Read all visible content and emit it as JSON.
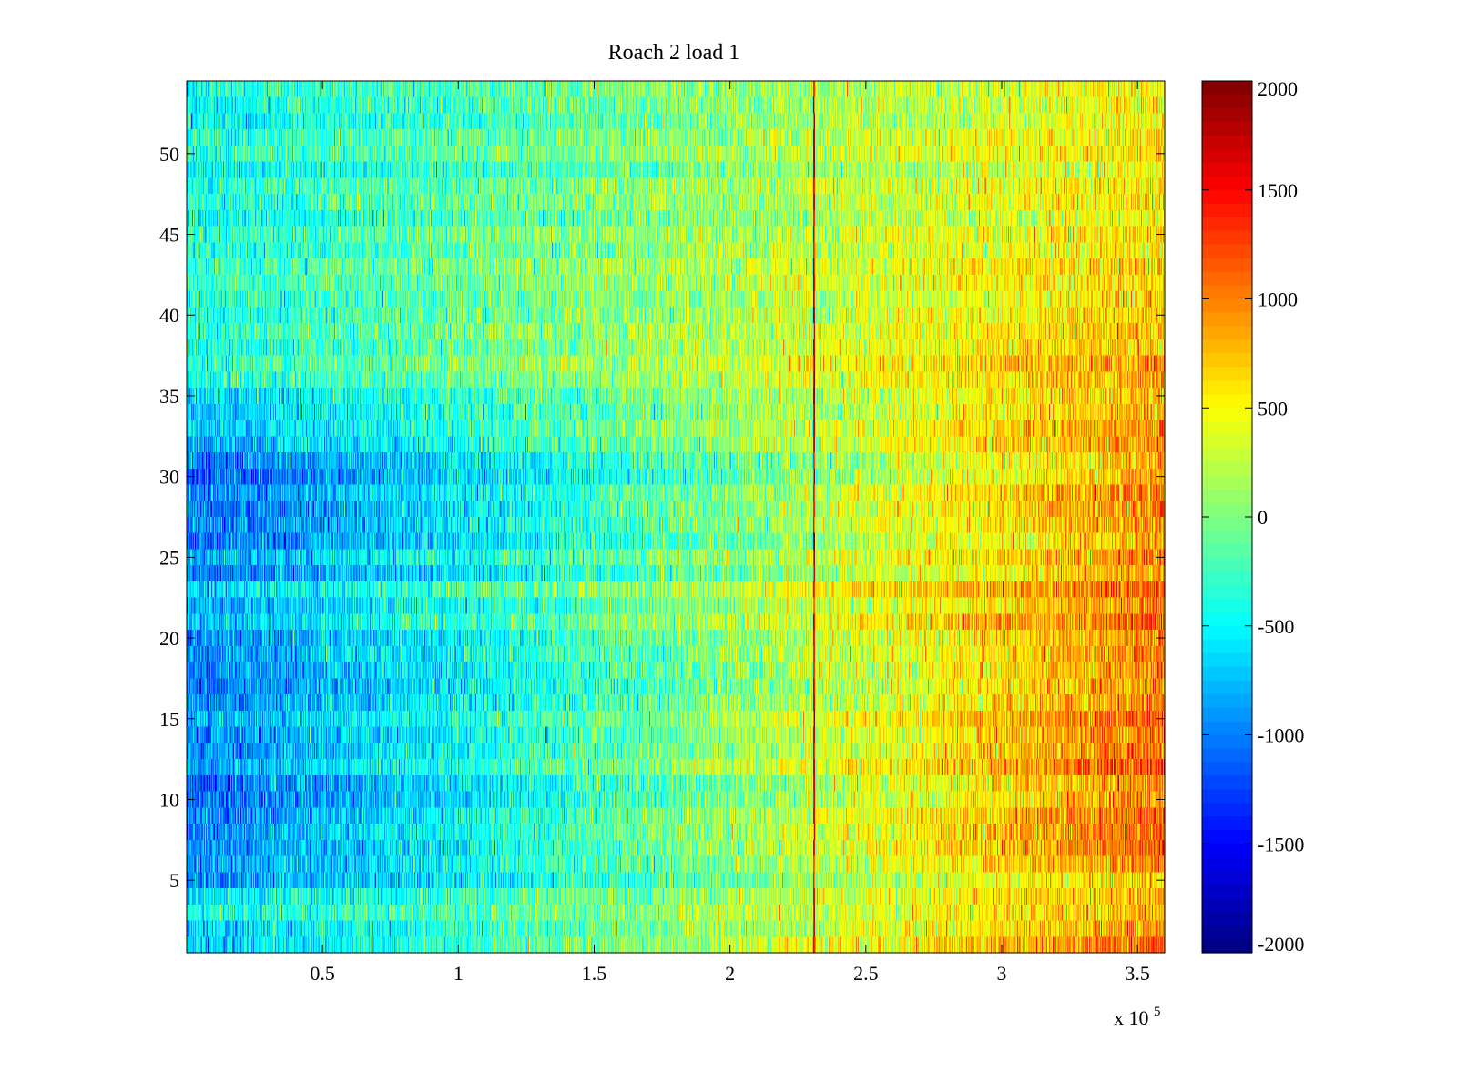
{
  "chart_data": {
    "type": "heatmap",
    "title": "Roach 2 load 1",
    "xlabel": "",
    "ylabel": "",
    "x_multiplier_label": "x 10",
    "x_multiplier_exponent": "5",
    "xlim": [
      0,
      3.6
    ],
    "ylim": [
      0.5,
      54.5
    ],
    "x_ticks": [
      0.5,
      1,
      1.5,
      2,
      2.5,
      3,
      3.5
    ],
    "x_tick_labels": [
      "0.5",
      "1",
      "1.5",
      "2",
      "2.5",
      "3",
      "3.5"
    ],
    "y_ticks": [
      5,
      10,
      15,
      20,
      25,
      30,
      35,
      40,
      45,
      50
    ],
    "y_tick_labels": [
      "5",
      "10",
      "15",
      "20",
      "25",
      "30",
      "35",
      "40",
      "45",
      "50"
    ],
    "rows": 54,
    "colormap": "jet",
    "clim": [
      -2000,
      2000
    ],
    "colorbar": {
      "ticks": [
        2000,
        1500,
        1000,
        500,
        0,
        -500,
        -1000,
        -1500,
        -2000
      ],
      "tick_labels": [
        "2000",
        "1500",
        "1000",
        "500",
        "0",
        "-500",
        "-1000",
        "-1500",
        "-2000"
      ]
    },
    "bright_column_x": 2.31,
    "seed": 12345,
    "row_profile": {
      "rows": [
        1,
        2,
        3,
        7,
        25,
        28,
        30,
        33,
        36,
        42,
        52
      ],
      "start_values": [
        -700,
        -700,
        -550,
        -1000,
        -900,
        -1050,
        -1000,
        -800,
        -500,
        -350,
        -450
      ],
      "end_values": [
        1100,
        900,
        700,
        1150,
        950,
        1050,
        1000,
        900,
        800,
        600,
        550
      ]
    }
  }
}
